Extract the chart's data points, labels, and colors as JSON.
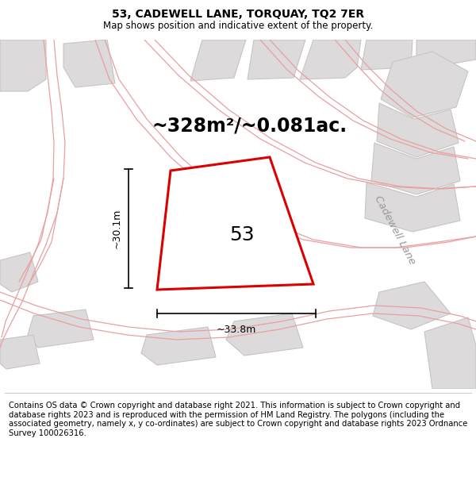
{
  "title": "53, CADEWELL LANE, TORQUAY, TQ2 7ER",
  "subtitle": "Map shows position and indicative extent of the property.",
  "area_text": "~328m²/~0.081ac.",
  "number_label": "53",
  "dim_vertical": "~30.1m",
  "dim_horizontal": "~33.8m",
  "road_label": "Cadewell Lane",
  "footer_text": "Contains OS data © Crown copyright and database right 2021. This information is subject to Crown copyright and database rights 2023 and is reproduced with the permission of HM Land Registry. The polygons (including the associated geometry, namely x, y co-ordinates) are subject to Crown copyright and database rights 2023 Ordnance Survey 100026316.",
  "bg_color": "#eeecec",
  "white": "#ffffff",
  "red_color": "#dd0000",
  "pink_color": "#e8a0a0",
  "building_fill": "#dcdada",
  "building_edge": "#c8c4c4",
  "title_fontsize": 10,
  "subtitle_fontsize": 8.5,
  "area_fontsize": 17,
  "number_fontsize": 18,
  "dim_fontsize": 9,
  "road_fontsize": 9.5,
  "footer_fontsize": 7.2
}
